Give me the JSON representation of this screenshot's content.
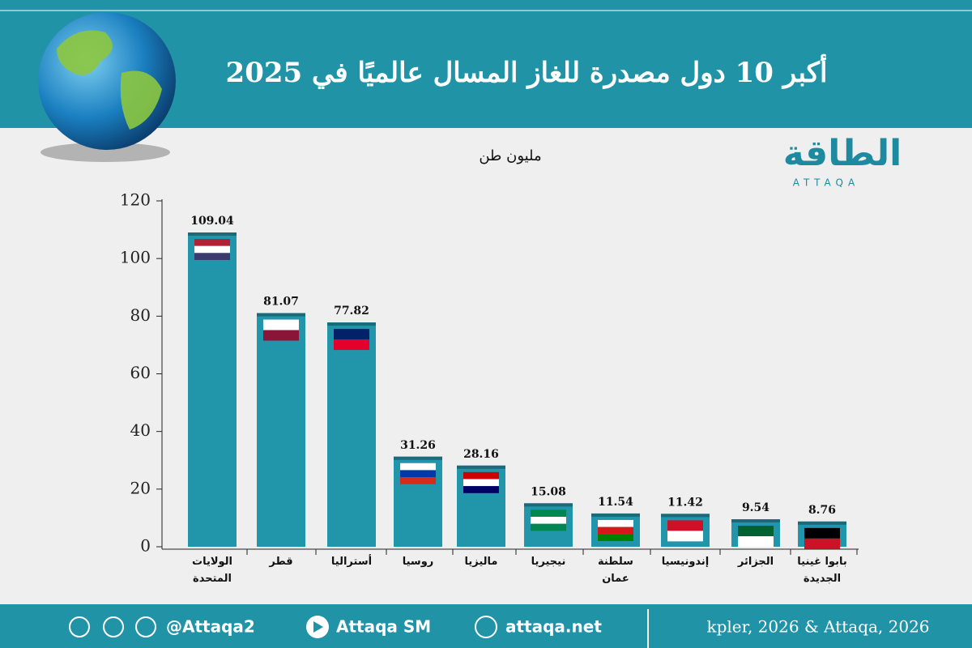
{
  "header": {
    "title": "أكبر 10 دول مصدرة للغاز المسال عالميًا في 2025",
    "logo": "الطاقة",
    "logo_latin": "ATTAQA"
  },
  "chart_data": {
    "type": "bar",
    "subtitle": "مليون طن",
    "categories": [
      "الولايات المتحدة",
      "قطر",
      "أستراليا",
      "روسيا",
      "ماليزيا",
      "نيجيريا",
      "سلطنة عمان",
      "إندونيسيا",
      "الجزائر",
      "بابوا غينيا الجديدة"
    ],
    "values": [
      109.04,
      81.07,
      77.82,
      31.26,
      28.16,
      15.08,
      11.54,
      11.42,
      9.54,
      8.76
    ],
    "color": "#2196ab",
    "ylim": [
      0,
      120
    ],
    "yticks": [
      0,
      20,
      40,
      60,
      80,
      100,
      120
    ],
    "grid": false
  },
  "footer": {
    "handle": "@Attaqa2",
    "channel": "Attaqa SM",
    "site": "attaqa.net",
    "source": "kpler, 2026 & Attaqa, 2026"
  }
}
